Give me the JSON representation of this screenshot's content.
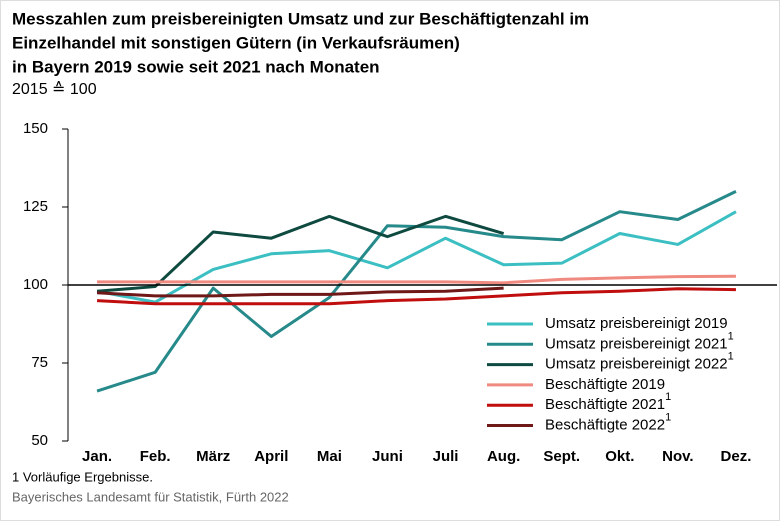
{
  "chart_data": {
    "type": "line",
    "title": [
      "Messzahlen zum preisbereinigten Umsatz und zur Beschäftigtenzahl im",
      "Einzelhandel mit sonstigen Gütern (in Verkaufsräumen)",
      "in Bayern 2019 sowie seit 2021 nach Monaten"
    ],
    "subtitle": "2015 ≙ 100",
    "categories": [
      "Jan.",
      "Feb.",
      "März",
      "April",
      "Mai",
      "Juni",
      "Juli",
      "Aug.",
      "Sept.",
      "Okt.",
      "Nov.",
      "Dez."
    ],
    "ylim": [
      50,
      150
    ],
    "yticks": [
      50,
      75,
      100,
      125,
      150
    ],
    "reference_line": 100,
    "series": [
      {
        "name": "Umsatz preisbereinigt 2019",
        "color": "#3cbfc2",
        "values": [
          98,
          94.5,
          105,
          110,
          111,
          105.5,
          115,
          106.5,
          107,
          116.5,
          113,
          123.5
        ]
      },
      {
        "name": "Umsatz preisbereinigt 2021",
        "note": "1",
        "color": "#26898a",
        "values": [
          66,
          72,
          99,
          83.5,
          96,
          119,
          118.5,
          115.5,
          114.5,
          123.5,
          121,
          130
        ]
      },
      {
        "name": "Umsatz preisbereinigt 2022",
        "note": "1",
        "color": "#0e4a40",
        "values": [
          98,
          99.5,
          117,
          115,
          122,
          115.5,
          122,
          116.5,
          null,
          null,
          null,
          null
        ]
      },
      {
        "name": "Beschäftigte 2019",
        "color": "#f08a80",
        "values": [
          101,
          101,
          101,
          101,
          101,
          101,
          101,
          100.7,
          101.8,
          102.3,
          102.7,
          102.8
        ]
      },
      {
        "name": "Beschäftigte 2021",
        "note": "1",
        "color": "#c00d0d",
        "values": [
          95,
          94,
          94,
          94,
          94,
          95,
          95.5,
          96.5,
          97.5,
          98,
          98.8,
          98.5
        ]
      },
      {
        "name": "Beschäftigte 2022",
        "note": "1",
        "color": "#6e1818",
        "values": [
          97.5,
          96.5,
          96.5,
          97,
          97,
          97.8,
          98,
          99,
          null,
          null,
          null,
          null
        ]
      }
    ],
    "footnote": "1  Vorläufige Ergebnisse.",
    "source": "Bayerisches Landesamt für Statistik, Fürth 2022"
  }
}
